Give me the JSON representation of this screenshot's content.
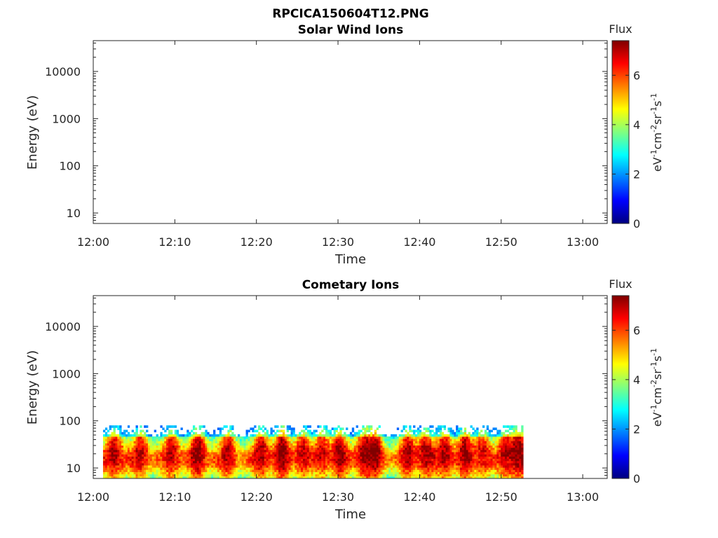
{
  "figure": {
    "filename_title": "RPCICA150604T12.PNG"
  },
  "panels": [
    {
      "title": "Solar Wind Ions",
      "ylabel": "Energy (eV)",
      "xlabel": "Time",
      "colorbar_title": "Flux",
      "colorbar_unit_parts": [
        "eV",
        "-1",
        "cm",
        "-2",
        "sr",
        "-1",
        "s",
        "-1"
      ]
    },
    {
      "title": "Cometary Ions",
      "ylabel": "Energy (eV)",
      "xlabel": "Time",
      "colorbar_title": "Flux",
      "colorbar_unit_parts": [
        "eV",
        "-1",
        "cm",
        "-2",
        "sr",
        "-1",
        "s",
        "-1"
      ]
    }
  ],
  "chart_data": [
    {
      "type": "heatmap",
      "title": "Solar Wind Ions",
      "xlabel": "Time",
      "ylabel": "Energy (eV)",
      "x_ticks": [
        "12:00",
        "12:10",
        "12:20",
        "12:30",
        "12:40",
        "12:50",
        "13:00"
      ],
      "y_ticks": [
        10,
        100,
        1000,
        10000
      ],
      "y_scale": "log",
      "xlim_minutes": [
        0,
        63
      ],
      "ylim": [
        6,
        45000
      ],
      "colorbar": {
        "label": "Flux",
        "ticks": [
          0,
          2,
          4,
          6
        ],
        "range": [
          0,
          7.4
        ],
        "colormap": "jet"
      },
      "data": "empty"
    },
    {
      "type": "heatmap",
      "title": "Cometary Ions",
      "xlabel": "Time",
      "ylabel": "Energy (eV)",
      "x_ticks": [
        "12:00",
        "12:10",
        "12:20",
        "12:30",
        "12:40",
        "12:50",
        "13:00"
      ],
      "y_ticks": [
        10,
        100,
        1000,
        10000
      ],
      "y_scale": "log",
      "xlim_minutes": [
        0,
        63
      ],
      "ylim": [
        6,
        45000
      ],
      "colorbar": {
        "label": "Flux",
        "ticks": [
          0,
          2,
          4,
          6
        ],
        "range": [
          0,
          7.4
        ],
        "colormap": "jet"
      },
      "data_time_range_minutes": [
        1.2,
        52.5
      ],
      "data_energy_range_eV": [
        6,
        80
      ],
      "peak_flux_energy_eV": 15,
      "intense_events_minutes": [
        2.5,
        5.8,
        9.5,
        12.8,
        16.5,
        20.5,
        23,
        25.5,
        28,
        30,
        33,
        34.5,
        38.5,
        40.5,
        43,
        45.5,
        47.5,
        50.5,
        52
      ]
    }
  ]
}
